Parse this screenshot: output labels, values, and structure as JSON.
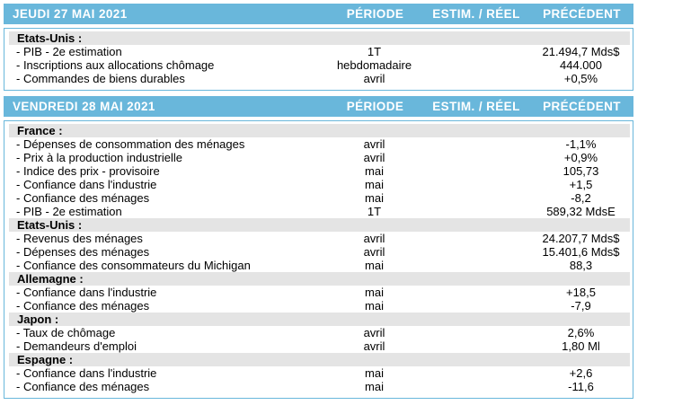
{
  "colors": {
    "header_bg": "#69B7DB",
    "header_text": "#FFFFFF",
    "country_band_bg": "#E4E4E4",
    "body_border": "#69B7DB",
    "row_text": "#000000"
  },
  "table": {
    "column_headers": {
      "periode": "PÉRIODE",
      "estim_reel": "ESTIM. / RÉEL",
      "precedent": "PRÉCÉDENT"
    },
    "days": [
      {
        "date": "JEUDI 27 MAI 2021",
        "groups": [
          {
            "country": "Etats-Unis :",
            "rows": [
              {
                "label": "- PIB - 2e estimation",
                "periode": "1T",
                "estim_reel": "",
                "precedent": "21.494,7 Mds$"
              },
              {
                "label": "- Inscriptions aux allocations chômage",
                "periode": "hebdomadaire",
                "estim_reel": "",
                "precedent": "444.000"
              },
              {
                "label": "- Commandes de biens durables",
                "periode": "avril",
                "estim_reel": "",
                "precedent": "+0,5%"
              }
            ]
          }
        ]
      },
      {
        "date": "VENDREDI 28 MAI 2021",
        "groups": [
          {
            "country": "France :",
            "rows": [
              {
                "label": "- Dépenses de consommation des ménages",
                "periode": "avril",
                "estim_reel": "",
                "precedent": "-1,1%"
              },
              {
                "label": "- Prix à la production industrielle",
                "periode": "avril",
                "estim_reel": "",
                "precedent": "+0,9%"
              },
              {
                "label": "- Indice des prix - provisoire",
                "periode": "mai",
                "estim_reel": "",
                "precedent": "105,73"
              },
              {
                "label": "- Confiance dans l'industrie",
                "periode": "mai",
                "estim_reel": "",
                "precedent": "+1,5"
              },
              {
                "label": "- Confiance des ménages",
                "periode": "mai",
                "estim_reel": "",
                "precedent": "-8,2"
              },
              {
                "label": "- PIB - 2e estimation",
                "periode": "1T",
                "estim_reel": "",
                "precedent": "589,32 MdsE"
              }
            ]
          },
          {
            "country": "Etats-Unis :",
            "rows": [
              {
                "label": "- Revenus des ménages",
                "periode": "avril",
                "estim_reel": "",
                "precedent": "24.207,7 Mds$"
              },
              {
                "label": "- Dépenses des ménages",
                "periode": "avril",
                "estim_reel": "",
                "precedent": "15.401,6 Mds$"
              },
              {
                "label": "- Confiance des consommateurs du Michigan",
                "periode": "mai",
                "estim_reel": "",
                "precedent": "88,3"
              }
            ]
          },
          {
            "country": "Allemagne :",
            "rows": [
              {
                "label": "- Confiance dans l'industrie",
                "periode": "mai",
                "estim_reel": "",
                "precedent": "+18,5"
              },
              {
                "label": "- Confiance des ménages",
                "periode": "mai",
                "estim_reel": "",
                "precedent": "-7,9"
              }
            ]
          },
          {
            "country": "Japon :",
            "rows": [
              {
                "label": "- Taux de chômage",
                "periode": "avril",
                "estim_reel": "",
                "precedent": "2,6%"
              },
              {
                "label": "- Demandeurs d'emploi",
                "periode": "avril",
                "estim_reel": "",
                "precedent": "1,80 Ml"
              }
            ]
          },
          {
            "country": "Espagne :",
            "rows": [
              {
                "label": "- Confiance dans l'industrie",
                "periode": "mai",
                "estim_reel": "",
                "precedent": "+2,6"
              },
              {
                "label": "- Confiance des ménages",
                "periode": "mai",
                "estim_reel": "",
                "precedent": "-11,6"
              }
            ]
          }
        ]
      }
    ]
  }
}
